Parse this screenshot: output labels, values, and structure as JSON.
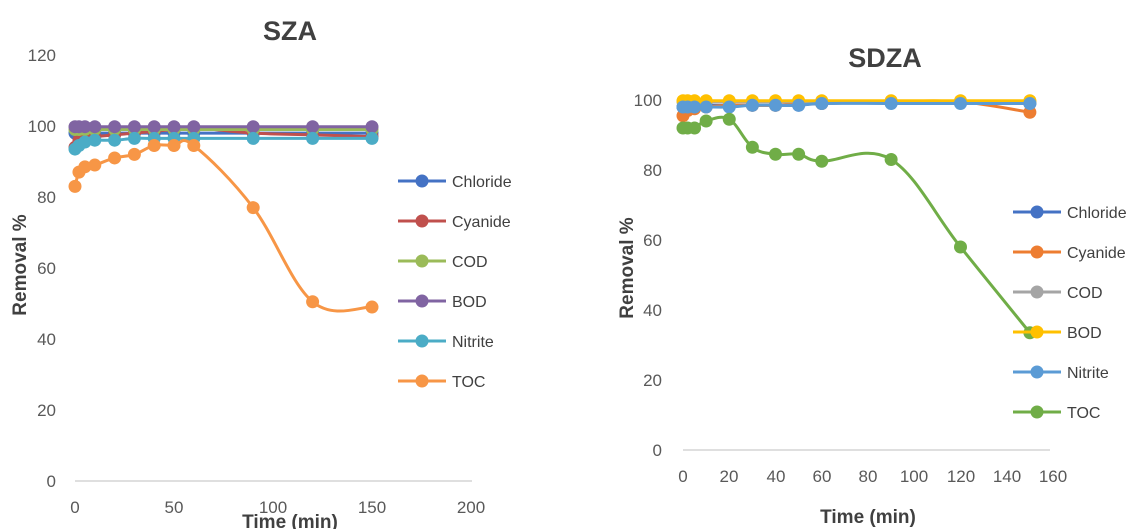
{
  "chart_data": [
    {
      "type": "line",
      "title": "SZA",
      "xlabel": "Time (min)",
      "ylabel": "Removal %",
      "xlim": [
        0,
        200
      ],
      "ylim": [
        0,
        120
      ],
      "xticks": [
        "0",
        "50",
        "100",
        "150",
        "200"
      ],
      "yticks": [
        "0",
        "20",
        "40",
        "60",
        "80",
        "100",
        "120"
      ],
      "grid": false,
      "legend": "right",
      "series": [
        {
          "name": "Chloride",
          "color": "#4472c4",
          "x": [
            0,
            2,
            5,
            10,
            20,
            30,
            40,
            50,
            60,
            90,
            120,
            150
          ],
          "y": [
            98,
            98,
            98,
            98,
            98,
            98,
            98,
            98,
            98,
            98,
            98,
            98
          ]
        },
        {
          "name": "Cyanide",
          "color": "#c0504d",
          "x": [
            0,
            2,
            5,
            10,
            20,
            30,
            40,
            50,
            60,
            90,
            120,
            150
          ],
          "y": [
            94,
            96,
            96.5,
            97,
            97.5,
            98,
            98.5,
            99,
            99.5,
            98,
            97.5,
            97
          ]
        },
        {
          "name": "COD",
          "color": "#9bbb59",
          "x": [
            0,
            2,
            5,
            10,
            20,
            30,
            40,
            50,
            60,
            90,
            120,
            150
          ],
          "y": [
            99,
            99,
            99,
            99,
            99,
            99,
            99,
            99,
            99,
            99,
            99,
            99
          ]
        },
        {
          "name": "BOD",
          "color": "#8064a2",
          "x": [
            0,
            2,
            5,
            10,
            20,
            30,
            40,
            50,
            60,
            90,
            120,
            150
          ],
          "y": [
            99.8,
            99.8,
            99.8,
            99.8,
            99.8,
            99.8,
            99.8,
            99.8,
            99.8,
            99.8,
            99.8,
            99.8
          ]
        },
        {
          "name": "Nitrite",
          "color": "#4bacc6",
          "x": [
            0,
            2,
            5,
            10,
            20,
            30,
            40,
            50,
            60,
            90,
            120,
            150
          ],
          "y": [
            93.5,
            94.5,
            95.5,
            96,
            96,
            96.5,
            96.5,
            96.5,
            96.5,
            96.5,
            96.5,
            96.5
          ]
        },
        {
          "name": "TOC",
          "color": "#f79646",
          "x": [
            0,
            2,
            5,
            10,
            20,
            30,
            40,
            50,
            60,
            90,
            120,
            150
          ],
          "y": [
            83,
            87,
            88.5,
            89,
            91,
            92,
            94.5,
            94.5,
            94.5,
            77,
            50.5,
            49
          ]
        }
      ]
    },
    {
      "type": "line",
      "title": "SDZA",
      "xlabel": "Time (min)",
      "ylabel": "Removal %",
      "xlim": [
        0,
        160
      ],
      "ylim": [
        0,
        100
      ],
      "xticks": [
        "0",
        "20",
        "40",
        "60",
        "80",
        "100",
        "120",
        "140",
        "160"
      ],
      "yticks": [
        "0",
        "20",
        "40",
        "60",
        "80",
        "100"
      ],
      "grid": false,
      "legend": "right",
      "series": [
        {
          "name": "Chloride",
          "color": "#4472c4",
          "x": [
            0,
            2,
            5,
            10,
            20,
            30,
            40,
            50,
            60,
            90,
            120,
            150
          ],
          "y": [
            98,
            98.5,
            98.5,
            98.5,
            98.5,
            98.5,
            98.5,
            98.5,
            99,
            99.5,
            99.5,
            99
          ]
        },
        {
          "name": "Cyanide",
          "color": "#ed7d31",
          "x": [
            0,
            2,
            5,
            10,
            20,
            30,
            40,
            50,
            60,
            90,
            120,
            150
          ],
          "y": [
            95.5,
            97,
            97.5,
            98,
            98.5,
            98.5,
            98.5,
            99,
            99,
            99.5,
            99.5,
            96.5
          ]
        },
        {
          "name": "COD",
          "color": "#a5a5a5",
          "x": [
            0,
            2,
            5,
            10,
            20,
            30,
            40,
            50,
            60,
            90,
            120,
            150
          ],
          "y": [
            99.5,
            99.5,
            99.5,
            99.5,
            99.5,
            99.5,
            99.5,
            99.5,
            99.5,
            99.5,
            99.5,
            99.5
          ]
        },
        {
          "name": "BOD",
          "color": "#ffc000",
          "x": [
            0,
            2,
            5,
            10,
            20,
            30,
            40,
            50,
            60,
            90,
            120,
            150
          ],
          "y": [
            99.8,
            99.8,
            99.8,
            99.8,
            99.8,
            99.8,
            99.8,
            99.8,
            99.8,
            99.8,
            99.8,
            99.8
          ]
        },
        {
          "name": "Nitrite",
          "color": "#5b9bd5",
          "x": [
            0,
            2,
            5,
            10,
            20,
            30,
            40,
            50,
            60,
            90,
            120,
            150
          ],
          "y": [
            98,
            98,
            98,
            98,
            98,
            98.5,
            98.5,
            98.5,
            99,
            99,
            99,
            99
          ]
        },
        {
          "name": "TOC",
          "color": "#70ad47",
          "x": [
            0,
            2,
            5,
            10,
            20,
            30,
            40,
            50,
            60,
            90,
            120,
            150
          ],
          "y": [
            92,
            92,
            92,
            94,
            94.5,
            86.5,
            84.5,
            84.5,
            82.5,
            83,
            58,
            33.5
          ]
        }
      ]
    }
  ]
}
